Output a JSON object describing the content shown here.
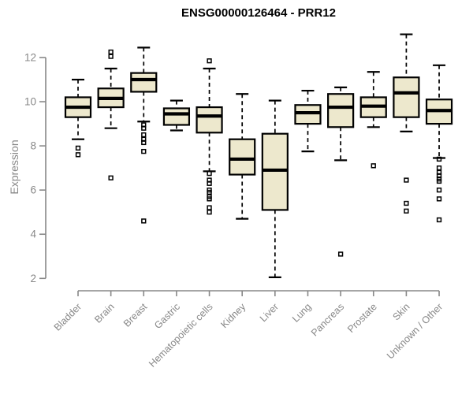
{
  "chart_data": {
    "type": "boxplot",
    "title": "ENSG00000126464 - PRR12",
    "ylabel": "Expression",
    "xlabel": "",
    "y_ticks": [
      2,
      4,
      6,
      8,
      10,
      12
    ],
    "ylim": [
      1.7,
      13.3
    ],
    "grid": false,
    "legend": "none",
    "categories": [
      "Bladder",
      "Brain",
      "Breast",
      "Gastric",
      "Hematopoietic cells",
      "Kidney",
      "Liver",
      "Lung",
      "Pancreas",
      "Prostate",
      "Skin",
      "Unknown / Other"
    ],
    "series": [
      {
        "name": "Bladder",
        "low": 8.3,
        "q1": 9.3,
        "median": 9.75,
        "q3": 10.2,
        "high": 11.0,
        "outliers": [
          7.9,
          7.6
        ]
      },
      {
        "name": "Brain",
        "low": 8.8,
        "q1": 9.75,
        "median": 10.15,
        "q3": 10.6,
        "high": 11.5,
        "outliers": [
          12.25,
          12.05,
          6.55
        ]
      },
      {
        "name": "Breast",
        "low": 9.1,
        "q1": 10.45,
        "median": 11.0,
        "q3": 11.3,
        "high": 12.45,
        "outliers": [
          8.95,
          8.8,
          8.5,
          8.3,
          8.15,
          7.75,
          4.6
        ]
      },
      {
        "name": "Gastric",
        "low": 8.7,
        "q1": 8.95,
        "median": 9.45,
        "q3": 9.7,
        "high": 10.05,
        "outliers": []
      },
      {
        "name": "Hematopoietic cells",
        "low": 6.85,
        "q1": 8.6,
        "median": 9.35,
        "q3": 9.75,
        "high": 11.5,
        "outliers": [
          11.85,
          6.75,
          6.45,
          6.3,
          6.0,
          5.9,
          5.7,
          5.6,
          5.2,
          5.0
        ]
      },
      {
        "name": "Kidney",
        "low": 4.7,
        "q1": 6.7,
        "median": 7.4,
        "q3": 8.3,
        "high": 10.35,
        "outliers": []
      },
      {
        "name": "Liver",
        "low": 2.05,
        "q1": 5.1,
        "median": 6.9,
        "q3": 8.55,
        "high": 10.05,
        "outliers": []
      },
      {
        "name": "Lung",
        "low": 7.75,
        "q1": 9.0,
        "median": 9.5,
        "q3": 9.85,
        "high": 10.5,
        "outliers": []
      },
      {
        "name": "Pancreas",
        "low": 7.35,
        "q1": 8.85,
        "median": 9.75,
        "q3": 10.35,
        "high": 10.65,
        "outliers": [
          3.1
        ]
      },
      {
        "name": "Prostate",
        "low": 8.85,
        "q1": 9.3,
        "median": 9.8,
        "q3": 10.2,
        "high": 11.35,
        "outliers": [
          7.1
        ]
      },
      {
        "name": "Skin",
        "low": 8.65,
        "q1": 9.3,
        "median": 10.4,
        "q3": 11.1,
        "high": 13.05,
        "outliers": [
          6.45,
          5.4,
          5.05
        ]
      },
      {
        "name": "Unknown / Other",
        "low": 7.45,
        "q1": 9.0,
        "median": 9.6,
        "q3": 10.1,
        "high": 11.65,
        "outliers": [
          7.4,
          7.0,
          6.8,
          6.65,
          6.5,
          6.4,
          6.0,
          5.6,
          4.65
        ]
      }
    ],
    "colors": {
      "box_fill": "#EDE8CD",
      "box_stroke": "#000000",
      "median": "#000000",
      "whisker": "#000000",
      "axis": "#888888",
      "tick_label": "#888888",
      "title": "#000000",
      "background": "#FFFFFF"
    }
  }
}
